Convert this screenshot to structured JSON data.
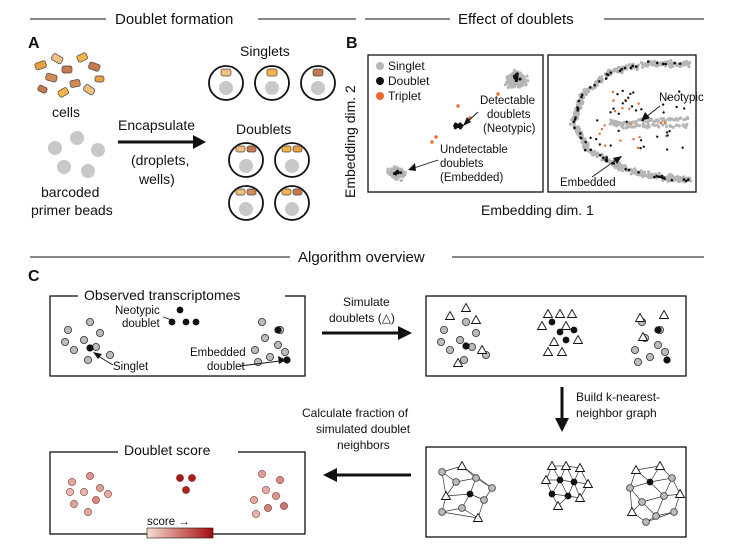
{
  "section_headers": {
    "doublet_formation": "Doublet formation",
    "effect_of_doublets": "Effect of doublets",
    "algorithm_overview": "Algorithm overview"
  },
  "panel_letters": {
    "a": "A",
    "b": "B",
    "c": "C"
  },
  "panel_a": {
    "cells_label": "cells",
    "beads_label_line1": "barcoded",
    "beads_label_line2": "primer beads",
    "encapsulate_label": "Encapsulate",
    "encapsulate_sub_line1": "(droplets,",
    "encapsulate_sub_line2": "wells)",
    "singlets_label": "Singlets",
    "doublets_label": "Doublets"
  },
  "panel_b": {
    "y_axis_label": "Embedding dim. 2",
    "x_axis_label": "Embedding dim. 1",
    "legend": [
      {
        "label": "Singlet",
        "color": "#b5b5b5"
      },
      {
        "label": "Doublet",
        "color": "#111111"
      },
      {
        "label": "Triplet",
        "color": "#e8692a"
      }
    ],
    "detectable_line1": "Detectable",
    "detectable_line2": "doublets",
    "detectable_line3": "(Neotypic)",
    "undetectable_line1": "Undetectable",
    "undetectable_line2": "doublets",
    "undetectable_line3": "(Embedded)",
    "neotypic_label": "Neotypic",
    "embedded_label": "Embedded"
  },
  "panel_c": {
    "observed_title": "Observed transcriptomes",
    "neotypic_line1": "Neotypic",
    "neotypic_line2": "doublet",
    "singlet_label": "Singlet",
    "embedded_line1": "Embedded",
    "embedded_line2": "doublet",
    "simulate_line1": "Simulate",
    "simulate_line2": "doublets (△)",
    "knn_line1": "Build k-nearest-",
    "knn_line2": "neighbor graph",
    "calc_line1": "Calculate fraction of",
    "calc_line2": "simulated doublet",
    "calc_line3": "neighbors",
    "score_title": "Doublet score",
    "score_legend": "score →",
    "score_colors": [
      "#f6dcd2",
      "#a30d0d"
    ]
  }
}
